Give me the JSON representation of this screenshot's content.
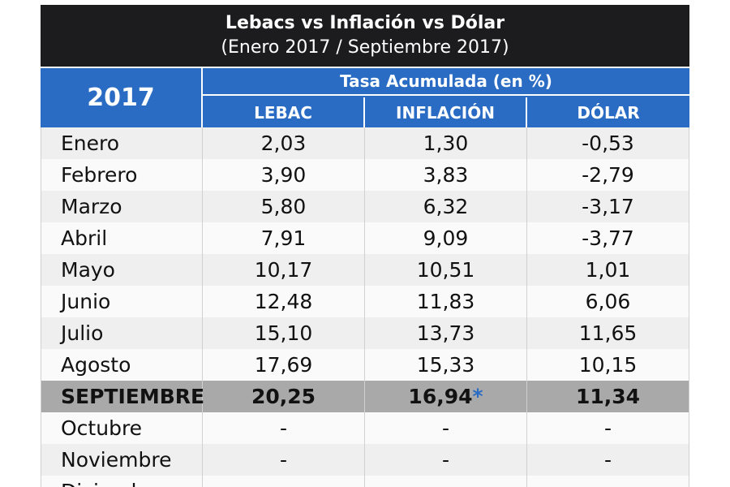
{
  "title": "Lebacs vs Inflación vs Dólar",
  "subtitle": "(Enero 2017 / Septiembre 2017)",
  "table": {
    "year": "2017",
    "group_header": "Tasa Acumulada (en %)",
    "columns": [
      "LEBAC",
      "INFLACIÓN",
      "DÓLAR"
    ],
    "highlight": "SEPTIEMBRE",
    "rows": [
      [
        "Enero",
        "2,03",
        "1,30",
        "-0,53"
      ],
      [
        "Febrero",
        "3,90",
        "3,83",
        "-2,79"
      ],
      [
        "Marzo",
        "5,80",
        "6,32",
        "-3,17"
      ],
      [
        "Abril",
        "7,91",
        "9,09",
        "-3,77"
      ],
      [
        "Mayo",
        "10,17",
        "10,51",
        "1,01"
      ],
      [
        "Junio",
        "12,48",
        "11,83",
        "6,06"
      ],
      [
        "Julio",
        "15,10",
        "13,73",
        "11,65"
      ],
      [
        "Agosto",
        "17,69",
        "15,33",
        "10,15"
      ],
      [
        "SEPTIEMBRE",
        "20,25",
        {
          "text": "16,94",
          "note": "*"
        },
        "11,34"
      ],
      [
        "Octubre",
        "-",
        "-",
        "-"
      ],
      [
        "Noviembre",
        "-",
        "-",
        "-"
      ],
      [
        "Diciembre",
        "-",
        "-",
        "-"
      ]
    ]
  }
}
